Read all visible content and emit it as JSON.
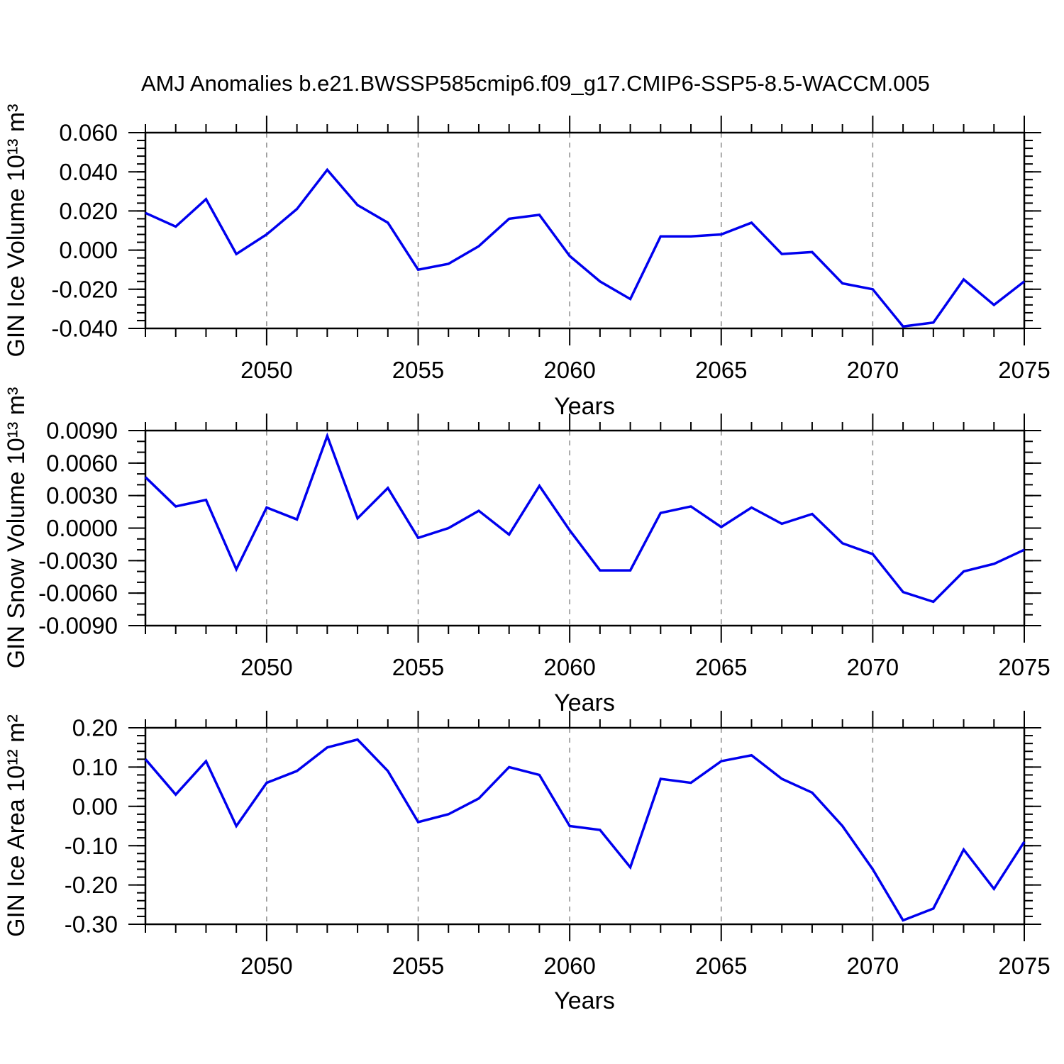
{
  "title": "AMJ Anomalies b.e21.BWSSP585cmip6.f09_g17.CMIP6-SSP5-8.5-WACCM.005",
  "line_color": "#0000ee",
  "grid_color": "#8c8c8c",
  "axis_color": "#000000",
  "background_color": "#ffffff",
  "chart_data": [
    {
      "type": "line",
      "ylabel": "GIN Ice Volume 10¹³ m³",
      "xlabel": "Years",
      "xlim": [
        2046,
        2075
      ],
      "ylim": [
        -0.04,
        0.06
      ],
      "xticks": [
        2050,
        2055,
        2060,
        2065,
        2070,
        2075
      ],
      "xminor_step": 1,
      "yticks": [
        0.06,
        0.04,
        0.02,
        0.0,
        -0.02,
        -0.04
      ],
      "ytick_labels": [
        "0.060",
        "0.040",
        "0.020",
        "0.000",
        "-0.020",
        "-0.040"
      ],
      "yminor_step": 0.004,
      "grid": "vertical-dashed-at-major-x",
      "legend": "none",
      "x": [
        2046,
        2047,
        2048,
        2049,
        2050,
        2051,
        2052,
        2053,
        2054,
        2055,
        2056,
        2057,
        2058,
        2059,
        2060,
        2061,
        2062,
        2063,
        2064,
        2065,
        2066,
        2067,
        2068,
        2069,
        2070,
        2071,
        2072,
        2073,
        2074,
        2075
      ],
      "values": [
        0.019,
        0.012,
        0.026,
        -0.002,
        0.008,
        0.021,
        0.041,
        0.023,
        0.014,
        -0.01,
        -0.007,
        0.002,
        0.016,
        0.018,
        -0.003,
        -0.016,
        -0.025,
        0.007,
        0.007,
        0.008,
        0.014,
        -0.002,
        -0.001,
        -0.017,
        -0.02,
        -0.039,
        -0.037,
        -0.015,
        -0.028,
        -0.016
      ]
    },
    {
      "type": "line",
      "ylabel": "GIN Snow Volume 10¹³ m³",
      "xlabel": "Years",
      "xlim": [
        2046,
        2075
      ],
      "ylim": [
        -0.009,
        0.009
      ],
      "xticks": [
        2050,
        2055,
        2060,
        2065,
        2070,
        2075
      ],
      "xminor_step": 1,
      "yticks": [
        0.009,
        0.006,
        0.003,
        0.0,
        -0.003,
        -0.006,
        -0.009
      ],
      "ytick_labels": [
        "0.0090",
        "0.0060",
        "0.0030",
        "0.0000",
        "-0.0030",
        "-0.0060",
        "-0.0090"
      ],
      "yminor_step": 0.001,
      "grid": "vertical-dashed-at-major-x",
      "legend": "none",
      "x": [
        2046,
        2047,
        2048,
        2049,
        2050,
        2051,
        2052,
        2053,
        2054,
        2055,
        2056,
        2057,
        2058,
        2059,
        2060,
        2061,
        2062,
        2063,
        2064,
        2065,
        2066,
        2067,
        2068,
        2069,
        2070,
        2071,
        2072,
        2073,
        2074,
        2075
      ],
      "values": [
        0.0047,
        0.002,
        0.0026,
        -0.0038,
        0.0019,
        0.0008,
        0.0085,
        0.0009,
        0.0037,
        -0.0009,
        0.0,
        0.0016,
        -0.0006,
        0.0039,
        -0.0002,
        -0.0039,
        -0.0039,
        0.0014,
        0.002,
        0.0001,
        0.0019,
        0.0004,
        0.0013,
        -0.0014,
        -0.0024,
        -0.0059,
        -0.0068,
        -0.004,
        -0.0033,
        -0.002
      ]
    },
    {
      "type": "line",
      "ylabel": "GIN Ice Area 10¹² m²",
      "xlabel": "Years",
      "xlim": [
        2046,
        2075
      ],
      "ylim": [
        -0.3,
        0.2
      ],
      "xticks": [
        2050,
        2055,
        2060,
        2065,
        2070,
        2075
      ],
      "xminor_step": 1,
      "yticks": [
        0.2,
        0.1,
        0.0,
        -0.1,
        -0.2,
        -0.3
      ],
      "ytick_labels": [
        "0.20",
        "0.10",
        "0.00",
        "-0.10",
        "-0.20",
        "-0.30"
      ],
      "yminor_step": 0.02,
      "grid": "vertical-dashed-at-major-x",
      "legend": "none",
      "x": [
        2046,
        2047,
        2048,
        2049,
        2050,
        2051,
        2052,
        2053,
        2054,
        2055,
        2056,
        2057,
        2058,
        2059,
        2060,
        2061,
        2062,
        2063,
        2064,
        2065,
        2066,
        2067,
        2068,
        2069,
        2070,
        2071,
        2072,
        2073,
        2074,
        2075
      ],
      "values": [
        0.12,
        0.03,
        0.115,
        -0.05,
        0.06,
        0.09,
        0.15,
        0.17,
        0.09,
        -0.04,
        -0.02,
        0.02,
        0.1,
        0.08,
        -0.05,
        -0.06,
        -0.155,
        0.07,
        0.06,
        0.115,
        0.13,
        0.07,
        0.035,
        -0.05,
        -0.16,
        -0.29,
        -0.26,
        -0.11,
        -0.21,
        -0.09
      ]
    }
  ]
}
